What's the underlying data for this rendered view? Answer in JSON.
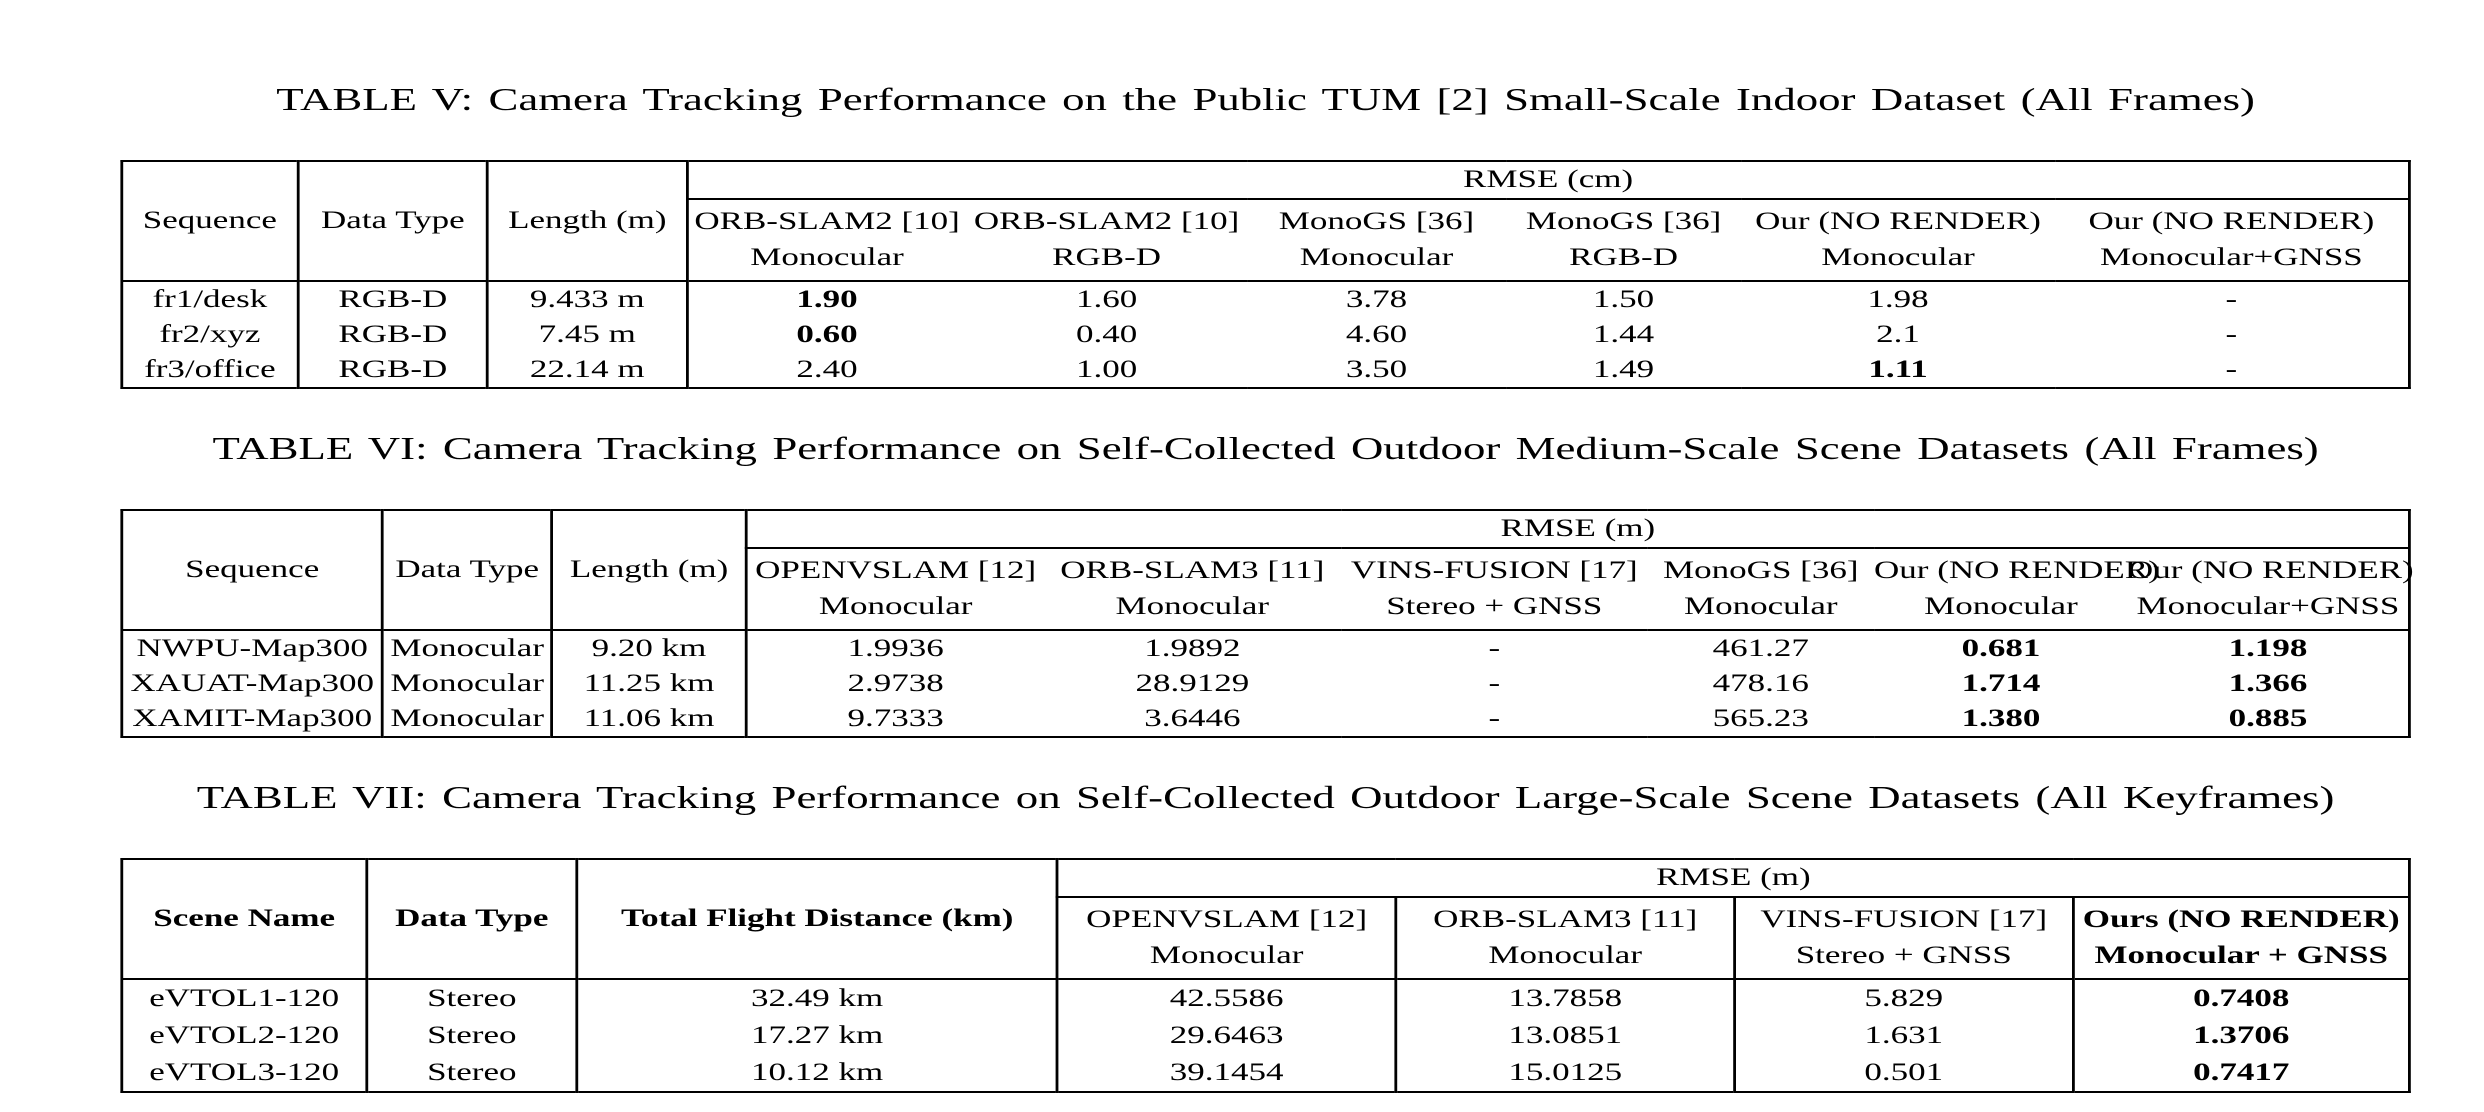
{
  "colors": {
    "background": "#ffffff",
    "text": "#000000",
    "border": "#000000"
  },
  "tables": [
    {
      "caption": "TABLE V: Camera Tracking Performance on the Public TUM [2] Small-Scale Indoor Dataset (All Frames)",
      "left_headers": [
        "Sequence",
        "Data Type",
        "Length (m)"
      ],
      "bold_left_headers": false,
      "group_header": "RMSE (cm)",
      "rmse_inner_borders": false,
      "method_headers": [
        {
          "method": "ORB-SLAM2 [10]",
          "modality": "Monocular",
          "bold": false
        },
        {
          "method": "ORB-SLAM2 [10]",
          "modality": "RGB-D",
          "bold": false
        },
        {
          "method": "MonoGS [36]",
          "modality": "Monocular",
          "bold": false
        },
        {
          "method": "MonoGS [36]",
          "modality": "RGB-D",
          "bold": false
        },
        {
          "method": "Our (NO RENDER)",
          "modality": "Monocular",
          "bold": false
        },
        {
          "method": "Our (NO RENDER)",
          "modality": "Monocular+GNSS",
          "bold": false
        }
      ],
      "rows": [
        {
          "cells": [
            "fr1/desk",
            "RGB-D",
            "9.433 m",
            "1.90",
            "1.60",
            "3.78",
            "1.50",
            "1.98",
            "-"
          ],
          "bold_cells": [
            3
          ]
        },
        {
          "cells": [
            "fr2/xyz",
            "RGB-D",
            "7.45 m",
            "0.60",
            "0.40",
            "4.60",
            "1.44",
            "2.1",
            "-"
          ],
          "bold_cells": [
            3
          ]
        },
        {
          "cells": [
            "fr3/office",
            "RGB-D",
            "22.14 m",
            "2.40",
            "1.00",
            "3.50",
            "1.49",
            "1.11",
            "-"
          ],
          "bold_cells": [
            7
          ]
        }
      ]
    },
    {
      "caption": "TABLE VI: Camera Tracking Performance on Self-Collected Outdoor Medium-Scale Scene Datasets (All Frames)",
      "left_headers": [
        "Sequence",
        "Data Type",
        "Length (m)"
      ],
      "bold_left_headers": false,
      "group_header": "RMSE (m)",
      "rmse_inner_borders": false,
      "method_headers": [
        {
          "method": "OPENVSLAM [12]",
          "modality": "Monocular",
          "bold": false
        },
        {
          "method": "ORB-SLAM3 [11]",
          "modality": "Monocular",
          "bold": false
        },
        {
          "method": "VINS-FUSION [17]",
          "modality": "Stereo + GNSS",
          "bold": false
        },
        {
          "method": "MonoGS [36]",
          "modality": "Monocular",
          "bold": false
        },
        {
          "method": "Our (NO RENDER)",
          "modality": "Monocular",
          "bold": false
        },
        {
          "method": "Our (NO RENDER)",
          "modality": "Monocular+GNSS",
          "bold": false
        }
      ],
      "rows": [
        {
          "cells": [
            "NWPU-Map300",
            "Monocular",
            "9.20 km",
            "1.9936",
            "1.9892",
            "-",
            "461.27",
            "0.681",
            "1.198"
          ],
          "bold_cells": [
            7,
            8
          ]
        },
        {
          "cells": [
            "XAUAT-Map300",
            "Monocular",
            "11.25 km",
            "2.9738",
            "28.9129",
            "-",
            "478.16",
            "1.714",
            "1.366"
          ],
          "bold_cells": [
            7,
            8
          ]
        },
        {
          "cells": [
            "XAMIT-Map300",
            "Monocular",
            "11.06 km",
            "9.7333",
            "3.6446",
            "-",
            "565.23",
            "1.380",
            "0.885"
          ],
          "bold_cells": [
            7,
            8
          ]
        }
      ]
    },
    {
      "caption": "TABLE VII: Camera Tracking Performance on Self-Collected Outdoor Large-Scale Scene Datasets (All Keyframes)",
      "left_headers": [
        "Scene Name",
        "Data Type",
        "Total Flight Distance (km)"
      ],
      "bold_left_headers": true,
      "group_header": "RMSE (m)",
      "rmse_inner_borders": true,
      "method_headers": [
        {
          "method": "OPENVSLAM [12]",
          "modality": "Monocular",
          "bold": false
        },
        {
          "method": "ORB-SLAM3 [11]",
          "modality": "Monocular",
          "bold": false
        },
        {
          "method": "VINS-FUSION [17]",
          "modality": "Stereo + GNSS",
          "bold": false
        },
        {
          "method": "Ours (NO RENDER)",
          "modality": "Monocular + GNSS",
          "bold": true
        }
      ],
      "rows": [
        {
          "cells": [
            "eVTOL1-120",
            "Stereo",
            "32.49 km",
            "42.5586",
            "13.7858",
            "5.829",
            "0.7408"
          ],
          "bold_cells": [
            6
          ]
        },
        {
          "cells": [
            "eVTOL2-120",
            "Stereo",
            "17.27 km",
            "29.6463",
            "13.0851",
            "1.631",
            "1.3706"
          ],
          "bold_cells": [
            6
          ]
        },
        {
          "cells": [
            "eVTOL3-120",
            "Stereo",
            "10.12 km",
            "39.1454",
            "15.0125",
            "0.501",
            "0.7417"
          ],
          "bold_cells": [
            6
          ]
        }
      ]
    }
  ]
}
